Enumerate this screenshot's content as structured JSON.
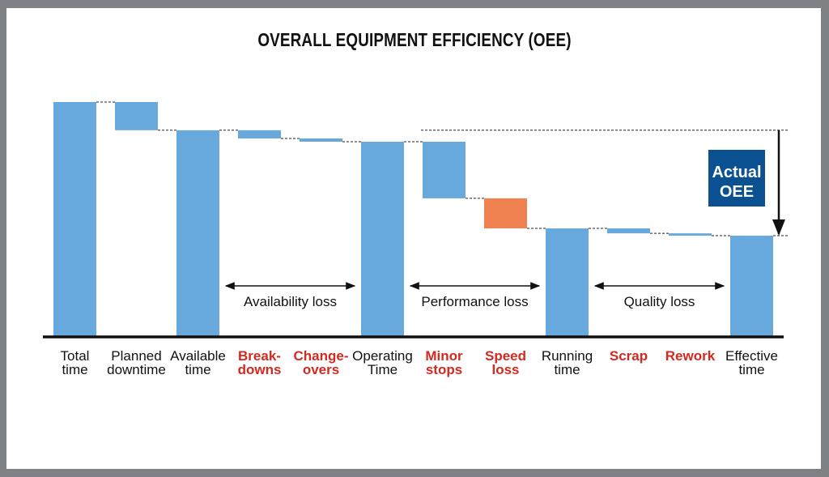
{
  "chart_data": {
    "type": "waterfall",
    "title": "OVERALL EQUIPMENT EFFICIENCY (OEE)",
    "xlabel": "",
    "ylabel": "",
    "ylim": [
      0,
      100
    ],
    "grid": false,
    "categories": [
      {
        "line1": "Total",
        "line2": "time",
        "kind": "total",
        "highlight": false
      },
      {
        "line1": "Planned",
        "line2": "downtime",
        "kind": "loss",
        "highlight": false
      },
      {
        "line1": "Available",
        "line2": "time",
        "kind": "total",
        "highlight": false
      },
      {
        "line1": "Break-",
        "line2": "downs",
        "kind": "loss",
        "highlight": true
      },
      {
        "line1": "Change-",
        "line2": "overs",
        "kind": "loss",
        "highlight": true
      },
      {
        "line1": "Operating",
        "line2": "Time",
        "kind": "total",
        "highlight": false
      },
      {
        "line1": "Minor",
        "line2": "stops",
        "kind": "loss",
        "highlight": true
      },
      {
        "line1": "Speed",
        "line2": "loss",
        "kind": "loss",
        "highlight": true
      },
      {
        "line1": "Running",
        "line2": "time",
        "kind": "total",
        "highlight": false
      },
      {
        "line1": "Scrap",
        "line2": "",
        "kind": "loss",
        "highlight": true
      },
      {
        "line1": "Rework",
        "line2": "",
        "kind": "loss",
        "highlight": true
      },
      {
        "line1": "Effective",
        "line2": "time",
        "kind": "total",
        "highlight": false
      }
    ],
    "values": [
      100,
      12,
      88,
      3.5,
      1.4,
      83.1,
      24.1,
      12.8,
      46.2,
      2.1,
      1.0,
      43.1
    ],
    "bar_colors": [
      "#68a9dd",
      "#68a9dd",
      "#68a9dd",
      "#68a9dd",
      "#68a9dd",
      "#68a9dd",
      "#68a9dd",
      "#ef8250",
      "#68a9dd",
      "#68a9dd",
      "#68a9dd",
      "#68a9dd"
    ],
    "label_colors": {
      "normal": "#111111",
      "highlight": "#d22a20"
    },
    "ranges": [
      {
        "label": "Availability loss",
        "from": 3,
        "to": 4
      },
      {
        "label": "Performance loss",
        "from": 6,
        "to": 7
      },
      {
        "label": "Quality loss",
        "from": 9,
        "to": 10
      }
    ],
    "annotation": {
      "line1": "Actual",
      "line2": "OEE",
      "box_color": "#0b5090",
      "from_value": 88,
      "to_value": 43.1
    }
  }
}
